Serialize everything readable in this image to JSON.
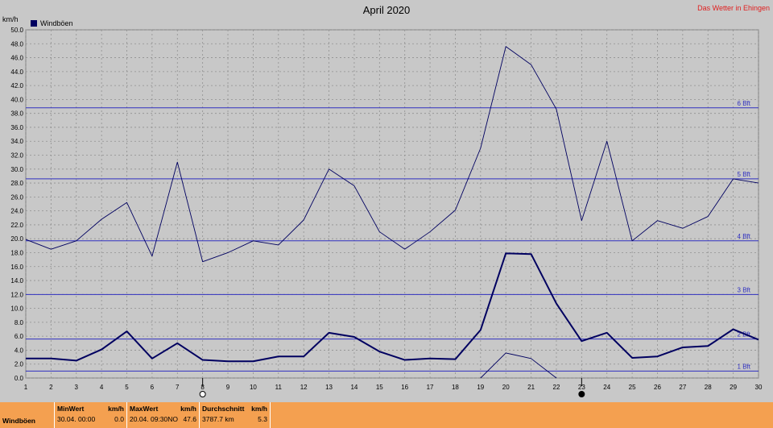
{
  "header": {
    "title": "April 2020",
    "brand": "Das Wetter in Ehingen",
    "unit": "km/h",
    "legend_label": "Windböen"
  },
  "chart_data": {
    "type": "line",
    "title": "April 2020",
    "ylabel": "km/h",
    "xlim": [
      1,
      30
    ],
    "ylim": [
      0,
      50
    ],
    "x_ticks": [
      1,
      2,
      3,
      4,
      5,
      6,
      7,
      8,
      9,
      10,
      11,
      12,
      13,
      14,
      15,
      16,
      17,
      18,
      19,
      20,
      21,
      22,
      23,
      24,
      25,
      26,
      27,
      28,
      29,
      30
    ],
    "y_ticks": [
      "0.0",
      "2.0",
      "4.0",
      "6.0",
      "8.0",
      "10.0",
      "12.0",
      "14.0",
      "16.0",
      "18.0",
      "20.0",
      "22.0",
      "24.0",
      "26.0",
      "28.0",
      "30.0",
      "32.0",
      "34.0",
      "36.0",
      "38.0",
      "40.0",
      "42.0",
      "44.0",
      "46.0",
      "48.0",
      "50.0"
    ],
    "grid": true,
    "legend_position": "top-left",
    "series": [
      {
        "name": "Windböen",
        "style": "max",
        "x": [
          1,
          2,
          3,
          4,
          5,
          6,
          7,
          8,
          9,
          10,
          11,
          12,
          13,
          14,
          15,
          16,
          17,
          18,
          19,
          20,
          21,
          22,
          23,
          24,
          25,
          26,
          27,
          28,
          29,
          30
        ],
        "values": [
          19.9,
          18.5,
          19.7,
          22.8,
          25.2,
          17.5,
          31.0,
          16.7,
          18.0,
          19.7,
          19.1,
          22.7,
          30.0,
          27.6,
          21.0,
          18.5,
          21.0,
          24.1,
          33.0,
          47.6,
          45.0,
          38.6,
          22.6,
          34.0,
          19.7,
          22.6,
          21.5,
          23.2,
          28.6,
          28.0
        ]
      },
      {
        "name": "Windböen",
        "style": "avg",
        "x": [
          1,
          2,
          3,
          4,
          5,
          6,
          7,
          8,
          9,
          10,
          11,
          12,
          13,
          14,
          15,
          16,
          17,
          18,
          19,
          20,
          21,
          22,
          23,
          24,
          25,
          26,
          27,
          28,
          29,
          30
        ],
        "values": [
          2.8,
          2.8,
          2.5,
          4.1,
          6.7,
          2.8,
          5.0,
          2.6,
          2.4,
          2.4,
          3.1,
          3.1,
          6.5,
          5.9,
          3.8,
          2.6,
          2.8,
          2.7,
          6.9,
          17.9,
          17.8,
          10.7,
          5.3,
          6.5,
          2.9,
          3.1,
          4.4,
          4.6,
          7.0,
          5.5
        ]
      },
      {
        "name": "Windböen",
        "style": "min",
        "x": [
          19,
          20,
          21,
          22
        ],
        "values": [
          0.0,
          3.6,
          2.8,
          0.0
        ]
      }
    ],
    "reference_lines": [
      {
        "value": 1.0,
        "label": "1 Bft"
      },
      {
        "value": 5.6,
        "label": "2 Bft"
      },
      {
        "value": 12.0,
        "label": "3 Bft"
      },
      {
        "value": 19.7,
        "label": "4 Bft"
      },
      {
        "value": 28.6,
        "label": "5 Bft"
      },
      {
        "value": 38.8,
        "label": "6 Bft"
      }
    ],
    "moon_phases": [
      {
        "day": 8,
        "phase": "full"
      },
      {
        "day": 23,
        "phase": "new"
      }
    ]
  },
  "footer": {
    "series_name": "Windböen",
    "min": {
      "label": "MinWert",
      "unit": "km/h",
      "when": "30.04.  00:00",
      "value": "0.0"
    },
    "max": {
      "label": "MaxWert",
      "unit": "km/h",
      "when": "20.04.  09:30NO",
      "value": "47.6"
    },
    "avg": {
      "label": "Durchschnitt",
      "unit": "km/h",
      "when": "3787.7 km",
      "value": "5.3"
    }
  },
  "colors": {
    "background": "#c8c8c8",
    "line": "#000060",
    "reference": "#3030c0",
    "reference_label": "#3030c0",
    "footer": "#f4a050",
    "brand": "#e02020"
  }
}
